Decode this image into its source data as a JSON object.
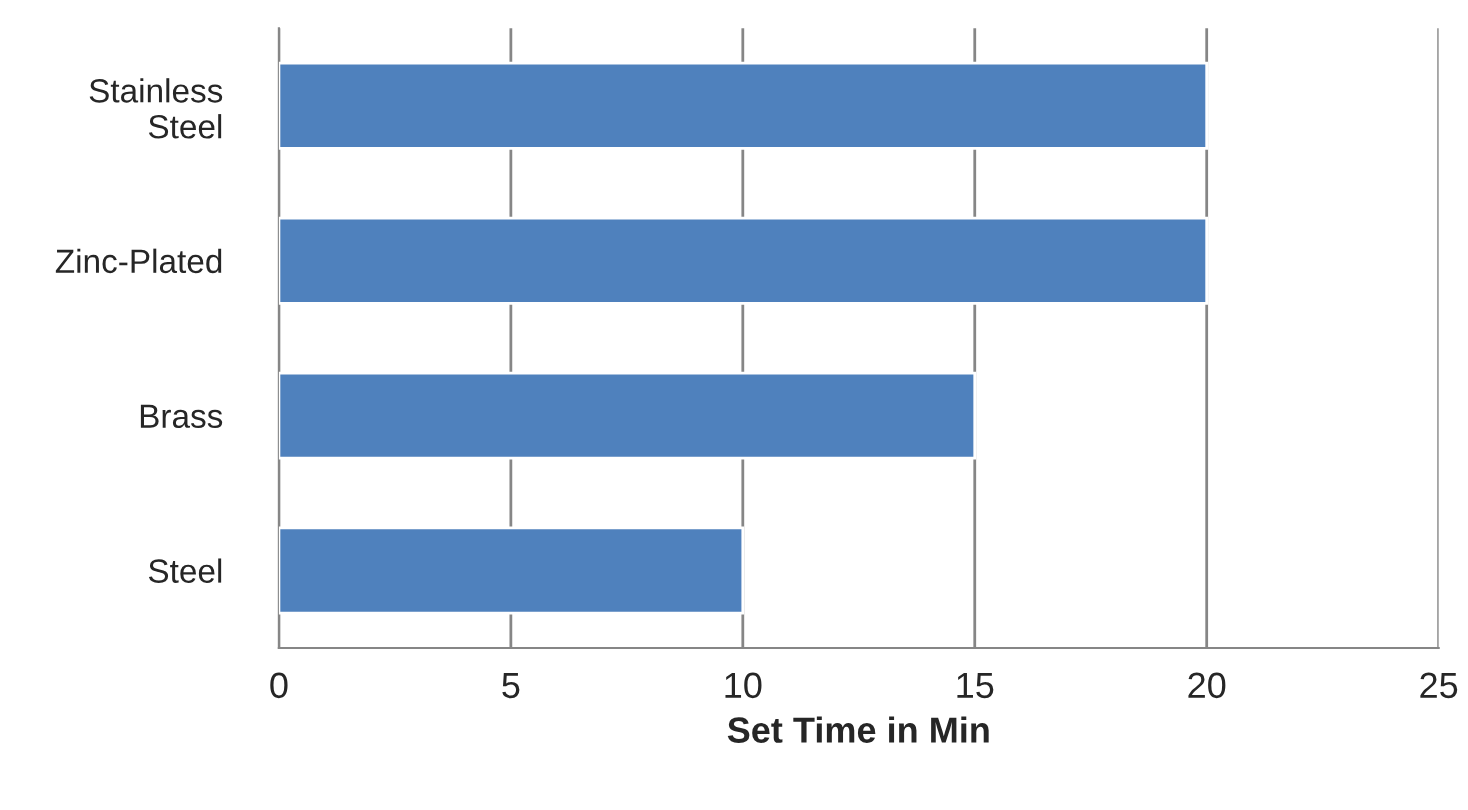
{
  "chart_data": {
    "type": "bar",
    "orientation": "horizontal",
    "xlabel": "Set Time in Min",
    "categories": [
      "Stainless Steel",
      "Zinc-Plated",
      "Brass",
      "Steel"
    ],
    "values": [
      20,
      20,
      15,
      10
    ],
    "color": "#4f81bd",
    "xlim": [
      0,
      25
    ],
    "xticks": [
      0,
      5,
      10,
      15,
      20,
      25
    ],
    "grid": "x",
    "legend": false
  }
}
